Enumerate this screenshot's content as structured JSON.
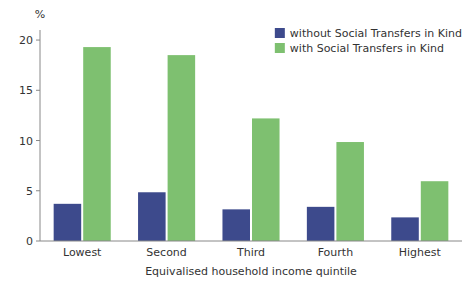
{
  "chart_data": {
    "type": "bar",
    "xlabel": "Equivalised household income quintile",
    "ylabel": "%",
    "categories": [
      "Lowest",
      "Second",
      "Third",
      "Fourth",
      "Highest"
    ],
    "series": [
      {
        "name": "without Social Transfers in Kind",
        "color": "#3d4a8c",
        "values": [
          3.7,
          4.85,
          3.15,
          3.4,
          2.35
        ]
      },
      {
        "name": "with Social Transfers in Kind",
        "color": "#7ec070",
        "values": [
          19.3,
          18.5,
          12.2,
          9.85,
          5.95
        ]
      }
    ],
    "ylim": [
      0,
      21
    ],
    "yticks": [
      0,
      5,
      10,
      15,
      20
    ],
    "grid": false,
    "legend": "upper right"
  }
}
